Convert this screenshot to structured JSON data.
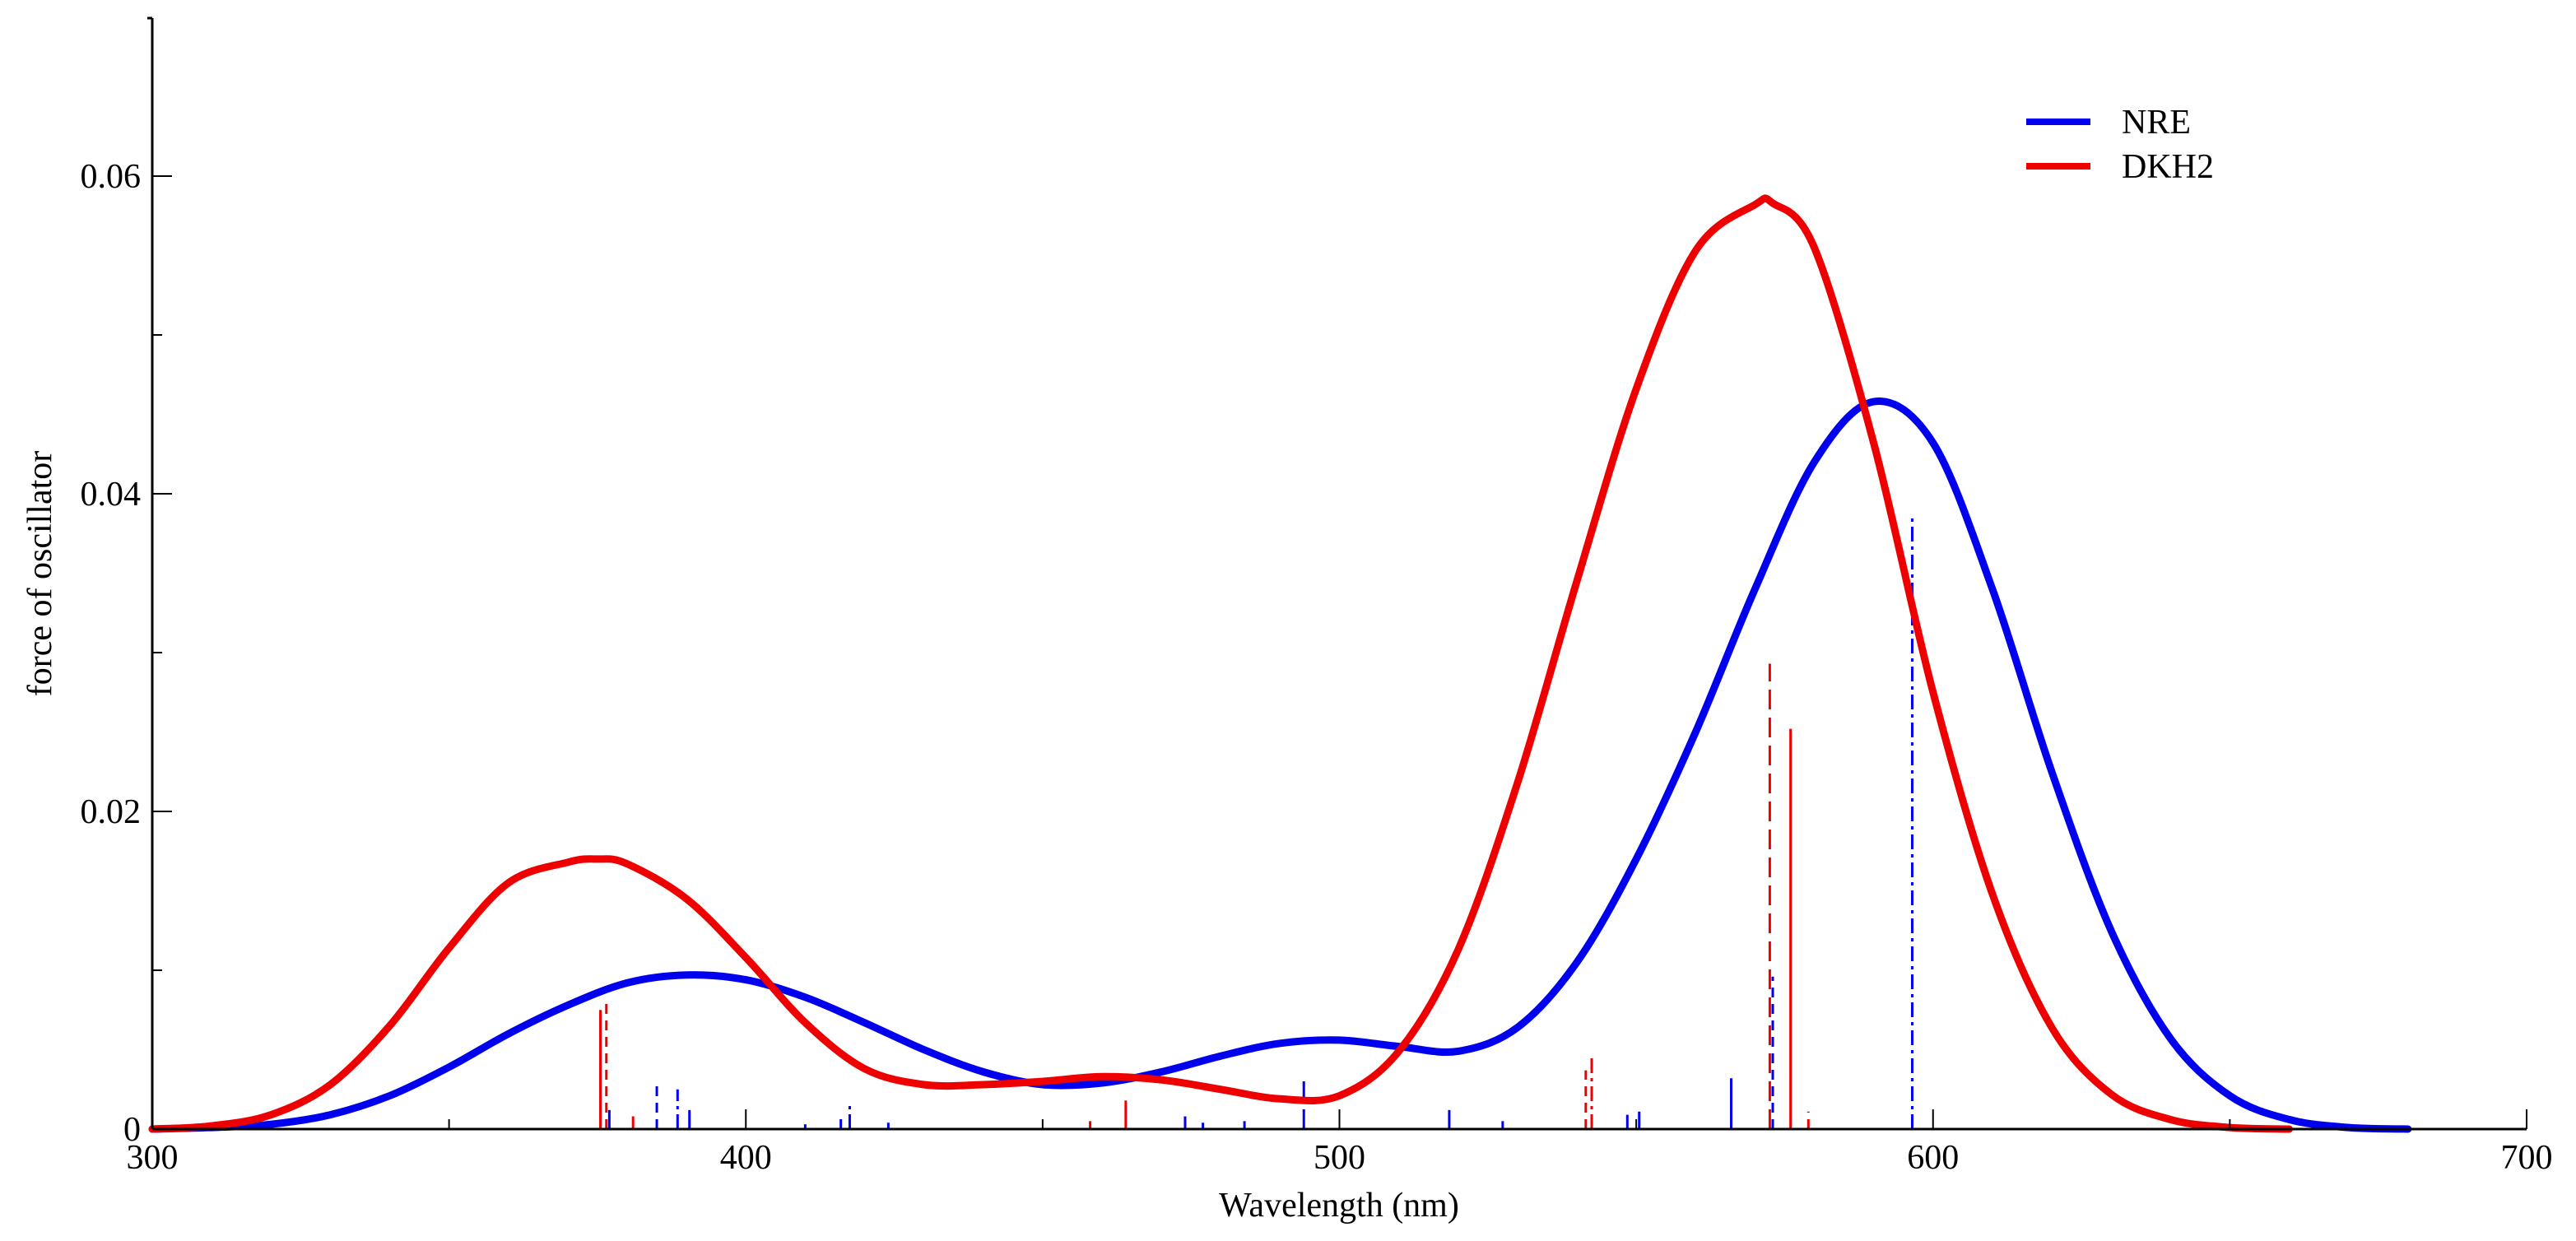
{
  "chart_data": {
    "type": "line",
    "title": "",
    "xlabel": "Wavelength (nm)",
    "ylabel": "force of oscillator",
    "xlim": [
      300,
      700
    ],
    "ylim": [
      0,
      0.07
    ],
    "x_ticks": [
      300,
      400,
      500,
      600,
      700
    ],
    "x_tick_labels": [
      "300",
      "400",
      "500",
      "600",
      "700"
    ],
    "y_ticks": [
      0,
      0.02,
      0.04,
      0.06
    ],
    "y_tick_labels": [
      "0",
      "0.02",
      "0.04",
      "0.06"
    ],
    "grid": false,
    "legend": {
      "position": "top-right",
      "entries": [
        "NRE",
        "DKH2"
      ]
    },
    "series": [
      {
        "name": "NRE",
        "color": "#0000ee",
        "x": [
          300,
          310,
          320,
          330,
          340,
          350,
          360,
          370,
          380,
          390,
          400,
          410,
          420,
          430,
          440,
          450,
          460,
          470,
          480,
          490,
          500,
          510,
          520,
          530,
          540,
          550,
          560,
          570,
          580,
          590,
          600,
          610,
          620,
          630,
          640,
          650,
          660,
          670,
          680
        ],
        "values": [
          0,
          0.0001,
          0.0003,
          0.0009,
          0.0021,
          0.0039,
          0.006,
          0.0078,
          0.0092,
          0.0097,
          0.0094,
          0.0083,
          0.0067,
          0.005,
          0.0036,
          0.0028,
          0.0029,
          0.0036,
          0.0046,
          0.0054,
          0.0056,
          0.0052,
          0.0049,
          0.0064,
          0.0105,
          0.017,
          0.025,
          0.034,
          0.042,
          0.0458,
          0.0432,
          0.034,
          0.0225,
          0.0125,
          0.0057,
          0.0021,
          0.0006,
          0.0001,
          0
        ]
      },
      {
        "name": "DKH2",
        "color": "#ee0000",
        "x": [
          300,
          310,
          320,
          330,
          340,
          350,
          360,
          370,
          375,
          380,
          390,
          400,
          410,
          420,
          430,
          440,
          450,
          460,
          470,
          480,
          490,
          500,
          510,
          520,
          530,
          540,
          550,
          560,
          570,
          573,
          580,
          590,
          600,
          610,
          620,
          630,
          640,
          650,
          660
        ],
        "values": [
          0,
          0.0002,
          0.0009,
          0.0028,
          0.0065,
          0.0114,
          0.0155,
          0.0168,
          0.017,
          0.0167,
          0.0145,
          0.0108,
          0.0067,
          0.0038,
          0.0028,
          0.0028,
          0.003,
          0.0033,
          0.0031,
          0.0025,
          0.0019,
          0.0021,
          0.0049,
          0.0113,
          0.0218,
          0.0345,
          0.0466,
          0.0553,
          0.0582,
          0.0583,
          0.0555,
          0.0432,
          0.0275,
          0.0148,
          0.0064,
          0.0022,
          0.0006,
          0.0001,
          0
        ]
      }
    ],
    "sticks": [
      {
        "name": "NRE",
        "color": "#0000ee",
        "x": [
          377,
          385,
          388.5,
          390.5,
          410,
          416,
          417.5,
          424,
          474,
          477,
          484,
          494,
          518.5,
          527.5,
          548.5,
          550.5,
          566,
          573,
          596.5
        ],
        "values": [
          0.0012,
          0.003,
          0.0025,
          0.0012,
          0.0003,
          0.0008,
          0.0016,
          0.0004,
          0.0008,
          0.0004,
          0.0005,
          0.0034,
          0.0012,
          0.0005,
          0.0009,
          0.0011,
          0.0032,
          0.0096,
          0.0385
        ]
      },
      {
        "name": "DKH2",
        "color": "#ee0000",
        "x": [
          375.5,
          376.5,
          381,
          458,
          464,
          541.5,
          542.5,
          572.5,
          576,
          579
        ],
        "values": [
          0.0075,
          0.008,
          0.0008,
          0.0005,
          0.0018,
          0.0037,
          0.0045,
          0.0293,
          0.0252,
          0.0011
        ]
      }
    ]
  }
}
